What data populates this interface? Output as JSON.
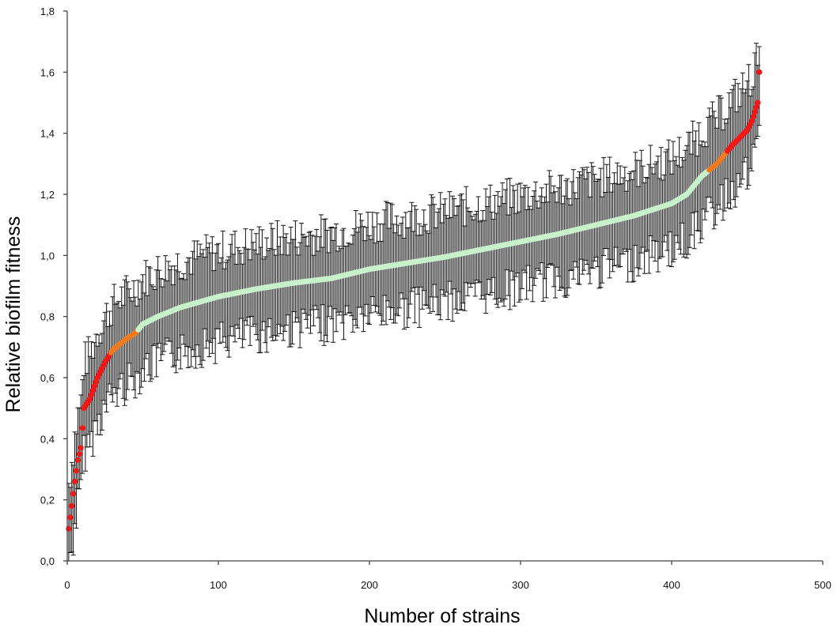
{
  "chart_data": {
    "type": "scatter",
    "title": "",
    "xlabel": "Number of strains",
    "ylabel": "Relative biofilm fitness",
    "xlim": [
      0,
      500
    ],
    "ylim": [
      0.0,
      1.8
    ],
    "x_ticks": [
      0,
      100,
      200,
      300,
      400,
      500
    ],
    "x_tick_labels": [
      "0",
      "100",
      "200",
      "300",
      "400",
      "500"
    ],
    "y_ticks": [
      0.0,
      0.2,
      0.4,
      0.6,
      0.8,
      1.0,
      1.2,
      1.4,
      1.6,
      1.8
    ],
    "y_tick_labels": [
      "0,0",
      "0,2",
      "0,4",
      "0,6",
      "0,8",
      "1,0",
      "1,2",
      "1,4",
      "1,6",
      "1,8"
    ],
    "grid": false,
    "legend": "none",
    "n_points": 458,
    "colors": {
      "red": "#f01818",
      "orange": "#f07a22",
      "green": "#c8f2cc",
      "error_bar": "#111111",
      "axis": "#444444"
    },
    "anchor_curve": [
      [
        1,
        0.105
      ],
      [
        3,
        0.18
      ],
      [
        5,
        0.26
      ],
      [
        7,
        0.33
      ],
      [
        9,
        0.37
      ],
      [
        11,
        0.5
      ],
      [
        15,
        0.53
      ],
      [
        20,
        0.6
      ],
      [
        25,
        0.65
      ],
      [
        30,
        0.69
      ],
      [
        35,
        0.71
      ],
      [
        40,
        0.73
      ],
      [
        45,
        0.745
      ],
      [
        50,
        0.775
      ],
      [
        60,
        0.8
      ],
      [
        75,
        0.83
      ],
      [
        100,
        0.865
      ],
      [
        125,
        0.89
      ],
      [
        150,
        0.91
      ],
      [
        175,
        0.925
      ],
      [
        200,
        0.955
      ],
      [
        225,
        0.975
      ],
      [
        250,
        0.995
      ],
      [
        275,
        1.02
      ],
      [
        300,
        1.045
      ],
      [
        325,
        1.07
      ],
      [
        350,
        1.1
      ],
      [
        375,
        1.13
      ],
      [
        400,
        1.17
      ],
      [
        410,
        1.2
      ],
      [
        420,
        1.26
      ],
      [
        425,
        1.28
      ],
      [
        430,
        1.3
      ],
      [
        435,
        1.33
      ],
      [
        440,
        1.36
      ],
      [
        445,
        1.385
      ],
      [
        450,
        1.41
      ],
      [
        453,
        1.44
      ],
      [
        455,
        1.47
      ],
      [
        457,
        1.5
      ],
      [
        458,
        1.6
      ]
    ],
    "color_ranges": [
      {
        "from": 1,
        "to": 28,
        "color": "red"
      },
      {
        "from": 29,
        "to": 46,
        "color": "orange"
      },
      {
        "from": 47,
        "to": 424,
        "color": "green"
      },
      {
        "from": 425,
        "to": 436,
        "color": "orange"
      },
      {
        "from": 437,
        "to": 458,
        "color": "red"
      }
    ],
    "error_bar_halfwidth_typical": 0.15
  }
}
